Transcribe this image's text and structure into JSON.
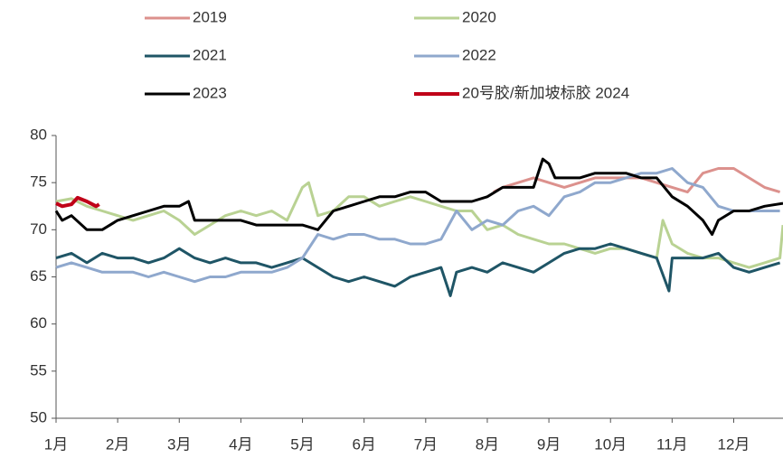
{
  "chart_data": {
    "type": "line",
    "xlim": [
      1,
      12.8
    ],
    "xticks": [
      {
        "value": 1,
        "label": "1月"
      },
      {
        "value": 2,
        "label": "2月"
      },
      {
        "value": 3,
        "label": "3月"
      },
      {
        "value": 4,
        "label": "4月"
      },
      {
        "value": 5,
        "label": "5月"
      },
      {
        "value": 6,
        "label": "6月"
      },
      {
        "value": 7,
        "label": "7月"
      },
      {
        "value": 8,
        "label": "8月"
      },
      {
        "value": 9,
        "label": "9月"
      },
      {
        "value": 10,
        "label": "10月"
      },
      {
        "value": 11,
        "label": "11月"
      },
      {
        "value": 12,
        "label": "12月"
      }
    ],
    "ylim": [
      50,
      80
    ],
    "yticks": [
      50,
      55,
      60,
      65,
      70,
      75,
      80
    ],
    "legend": "top",
    "series": [
      {
        "name": "2019",
        "color": "#dc918d",
        "x": [
          8.1,
          8.25,
          8.5,
          8.75,
          9.0,
          9.25,
          9.5,
          9.75,
          10,
          10.25,
          10.5,
          10.75,
          11,
          11.25,
          11.5,
          11.75,
          12.0,
          12.25,
          12.5,
          12.75
        ],
        "values": [
          74,
          74.5,
          75,
          75.5,
          75,
          74.5,
          75,
          75.5,
          75.5,
          75.5,
          75.5,
          75,
          74.5,
          74,
          76,
          76.5,
          76.5,
          75.5,
          74.5,
          74
        ]
      },
      {
        "name": "2020",
        "color": "#b9d293",
        "x": [
          1,
          1.25,
          1.5,
          1.75,
          2,
          2.25,
          2.5,
          2.75,
          3,
          3.25,
          3.5,
          3.75,
          4,
          4.25,
          4.5,
          4.75,
          5,
          5.1,
          5.25,
          5.5,
          5.75,
          6,
          6.25,
          6.5,
          6.75,
          7,
          7.25,
          7.5,
          7.75,
          8,
          8.25,
          8.5,
          8.75,
          9,
          9.25,
          9.5,
          9.75,
          10,
          10.25,
          10.5,
          10.75,
          10.85,
          11,
          11.25,
          11.5,
          11.75,
          12,
          12.25,
          12.5,
          12.75,
          12.8
        ],
        "values": [
          73,
          73.3,
          72.5,
          72,
          71.5,
          71,
          71.5,
          72,
          71,
          69.5,
          70.5,
          71.5,
          72,
          71.5,
          72,
          71,
          74.5,
          75,
          71.5,
          72,
          73.5,
          73.5,
          72.5,
          73,
          73.5,
          73,
          72.5,
          72,
          72,
          70,
          70.5,
          69.5,
          69,
          68.5,
          68.5,
          68,
          67.5,
          68,
          68,
          67.5,
          67,
          71,
          68.5,
          67.5,
          67,
          67,
          66.5,
          66,
          66.5,
          67,
          70.5
        ]
      },
      {
        "name": "2021",
        "color": "#1f5566",
        "x": [
          1,
          1.25,
          1.5,
          1.75,
          2,
          2.25,
          2.5,
          2.75,
          3,
          3.25,
          3.5,
          3.75,
          4,
          4.25,
          4.5,
          4.75,
          5,
          5.25,
          5.5,
          5.75,
          6,
          6.25,
          6.5,
          6.75,
          7,
          7.25,
          7.4,
          7.5,
          7.75,
          8,
          8.25,
          8.5,
          8.75,
          9,
          9.25,
          9.5,
          9.75,
          10,
          10.25,
          10.5,
          10.75,
          10.95,
          11,
          11.25,
          11.5,
          11.75,
          12,
          12.25,
          12.5,
          12.75
        ],
        "values": [
          67,
          67.5,
          66.5,
          67.5,
          67,
          67,
          66.5,
          67,
          68,
          67,
          66.5,
          67,
          66.5,
          66.5,
          66,
          66.5,
          67,
          66,
          65,
          64.5,
          65,
          64.5,
          64,
          65,
          65.5,
          66,
          63,
          65.5,
          66,
          65.5,
          66.5,
          66,
          65.5,
          66.5,
          67.5,
          68,
          68,
          68.5,
          68,
          67.5,
          67,
          63.5,
          67,
          67,
          67,
          67.5,
          66,
          65.5,
          66,
          66.5
        ]
      },
      {
        "name": "2022",
        "color": "#8fa8cd",
        "x": [
          1,
          1.25,
          1.5,
          1.75,
          2,
          2.25,
          2.5,
          2.75,
          3,
          3.25,
          3.5,
          3.75,
          4,
          4.25,
          4.5,
          4.75,
          5,
          5.25,
          5.5,
          5.75,
          6,
          6.25,
          6.5,
          6.75,
          7,
          7.25,
          7.5,
          7.75,
          8,
          8.25,
          8.5,
          8.75,
          9,
          9.25,
          9.5,
          9.75,
          10,
          10.25,
          10.5,
          10.75,
          11,
          11.25,
          11.5,
          11.75,
          12,
          12.25,
          12.5,
          12.75
        ],
        "values": [
          66,
          66.5,
          66,
          65.5,
          65.5,
          65.5,
          65,
          65.5,
          65,
          64.5,
          65,
          65,
          65.5,
          65.5,
          65.5,
          66,
          67,
          69.5,
          69,
          69.5,
          69.5,
          69,
          69,
          68.5,
          68.5,
          69,
          72,
          70,
          71,
          70.5,
          72,
          72.5,
          71.5,
          73.5,
          74,
          75,
          75,
          75.5,
          76,
          76,
          76.5,
          75,
          74.5,
          72.5,
          72,
          72,
          72,
          72
        ]
      },
      {
        "name": "2023",
        "color": "#000000",
        "x": [
          1,
          1.1,
          1.25,
          1.5,
          1.75,
          2,
          2.25,
          2.5,
          2.75,
          3,
          3.15,
          3.25,
          3.5,
          3.75,
          4,
          4.25,
          4.5,
          4.75,
          5,
          5.25,
          5.5,
          5.75,
          6,
          6.25,
          6.5,
          6.75,
          7,
          7.25,
          7.5,
          7.75,
          8,
          8.25,
          8.5,
          8.75,
          8.9,
          9.0,
          9.1,
          9.25,
          9.5,
          9.75,
          10,
          10.25,
          10.5,
          10.75,
          11,
          11.25,
          11.5,
          11.65,
          11.75,
          12,
          12.25,
          12.5,
          12.8
        ],
        "values": [
          72,
          71,
          71.5,
          70,
          70,
          71,
          71.5,
          72,
          72.5,
          72.5,
          73,
          71,
          71,
          71,
          71,
          70.5,
          70.5,
          70.5,
          70.5,
          70,
          72,
          72.5,
          73,
          73.5,
          73.5,
          74,
          74,
          73,
          73,
          73,
          73.5,
          74.5,
          74.5,
          74.5,
          77.5,
          77,
          75.5,
          75.5,
          75.5,
          76,
          76,
          76,
          75.5,
          75.5,
          73.5,
          72.5,
          71,
          69.5,
          71,
          72,
          72,
          72.5,
          72.8
        ]
      },
      {
        "name": "20号胶/新加坡标胶 2024",
        "color": "#c00018",
        "x": [
          1,
          1.1,
          1.25,
          1.35,
          1.5,
          1.65,
          1.7
        ],
        "values": [
          72.8,
          72.5,
          72.7,
          73.4,
          73,
          72.5,
          72.7
        ]
      }
    ]
  }
}
